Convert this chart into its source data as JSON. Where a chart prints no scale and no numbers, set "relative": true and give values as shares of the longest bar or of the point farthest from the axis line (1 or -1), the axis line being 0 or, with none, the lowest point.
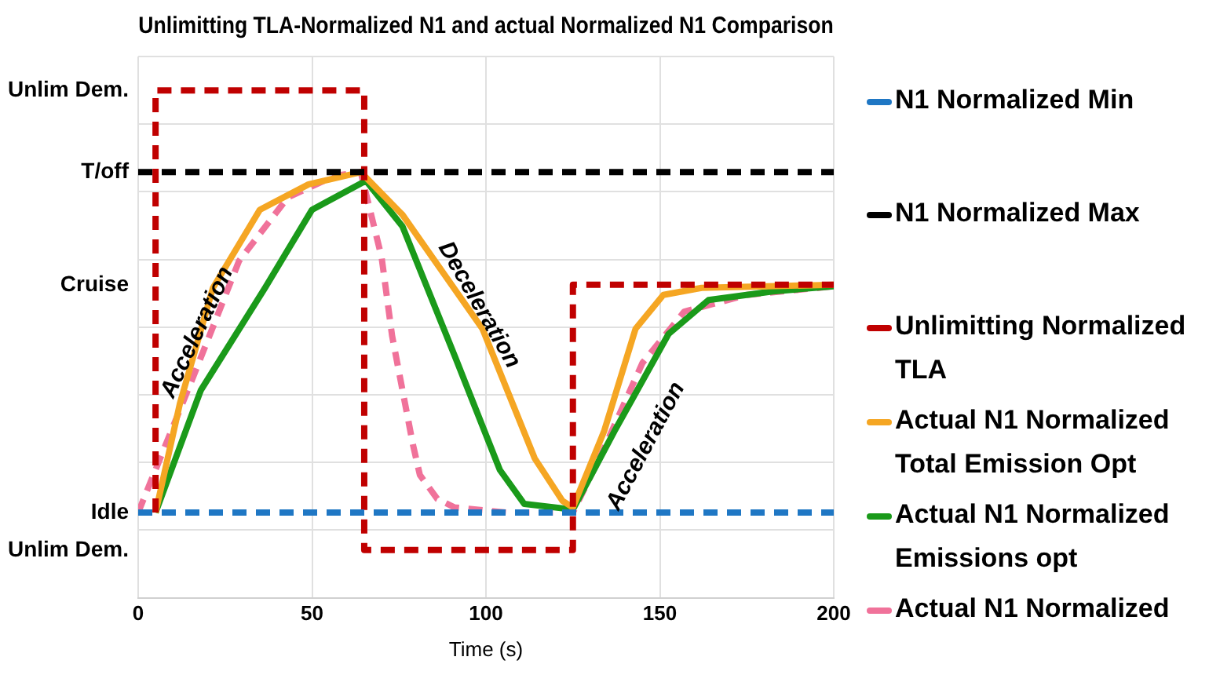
{
  "chart_data": {
    "type": "line",
    "title": "Unlimitting TLA-Normalized N1 and actual Normalized N1 Comparison",
    "xlabel": "Time (s)",
    "xlim": [
      0,
      200
    ],
    "xticks": [
      0,
      50,
      100,
      150,
      200
    ],
    "relative": true,
    "grid": true,
    "legend": "right",
    "marker": "none",
    "series": [
      {
        "name": "N1 Normalized Min",
        "color": "#1f77c4",
        "line_style": "dashed",
        "x": [
          0,
          200
        ],
        "values": [
          0.168,
          0.168
        ]
      },
      {
        "name": "N1 Normalized Max",
        "color": "#000000",
        "line_style": "dashed",
        "x": [
          0,
          200
        ],
        "values": [
          0.839,
          0.839
        ]
      },
      {
        "name": "Unlimitting Normalized TLA",
        "color": "#c00000",
        "line_style": "dashed",
        "x": [
          5,
          5,
          65,
          65,
          125,
          125,
          200
        ],
        "values": [
          0.168,
          1,
          1,
          0.094,
          0.094,
          0.617,
          0.617
        ]
      },
      {
        "name": "Actual N1 Normalized Total Emission Opt",
        "color": "#f5a623",
        "line_style": "solid",
        "x": [
          5,
          12,
          21.5,
          35,
          49,
          64,
          76,
          99,
          114,
          122,
          125,
          134,
          143,
          151,
          162,
          200
        ],
        "values": [
          0.168,
          0.383,
          0.611,
          0.765,
          0.815,
          0.839,
          0.755,
          0.53,
          0.275,
          0.191,
          0.178,
          0.329,
          0.53,
          0.597,
          0.611,
          0.617
        ]
      },
      {
        "name": "Actual N1 Normalized Emissions opt",
        "color": "#1a9a1a",
        "line_style": "solid",
        "x": [
          5,
          18,
          36.5,
          50,
          65.5,
          76,
          91,
          104,
          111,
          125,
          137,
          152.5,
          164,
          182.5,
          200
        ],
        "values": [
          0.168,
          0.409,
          0.611,
          0.765,
          0.822,
          0.732,
          0.477,
          0.252,
          0.185,
          0.174,
          0.329,
          0.52,
          0.587,
          0.604,
          0.614
        ]
      },
      {
        "name": "Actual N1 Normalized",
        "color": "#f0729a",
        "line_style": "dashed",
        "x": [
          0,
          15.5,
          29,
          43,
          56.5,
          64,
          70,
          73,
          76,
          79,
          81,
          86,
          91,
          106,
          125,
          134,
          145,
          157,
          175,
          200
        ],
        "values": [
          0.168,
          0.43,
          0.664,
          0.789,
          0.832,
          0.839,
          0.671,
          0.517,
          0.409,
          0.302,
          0.242,
          0.195,
          0.178,
          0.168,
          0.168,
          0.295,
          0.463,
          0.564,
          0.597,
          0.614
        ]
      }
    ],
    "annotations": [
      {
        "text": "Unlim Dem.",
        "x": 5,
        "y": 1
      },
      {
        "text": "T/off",
        "x": 0,
        "y": 0.839
      },
      "Cruise",
      {
        "text": "Idle",
        "x": 0,
        "y": 0.168
      },
      "Unlim Dem.",
      {
        "text": "Acceleration",
        "x": 17,
        "y": 0.523
      },
      {
        "text": "Deceleration",
        "x": 98,
        "y": 0.577
      },
      "Acceleration"
    ]
  }
}
